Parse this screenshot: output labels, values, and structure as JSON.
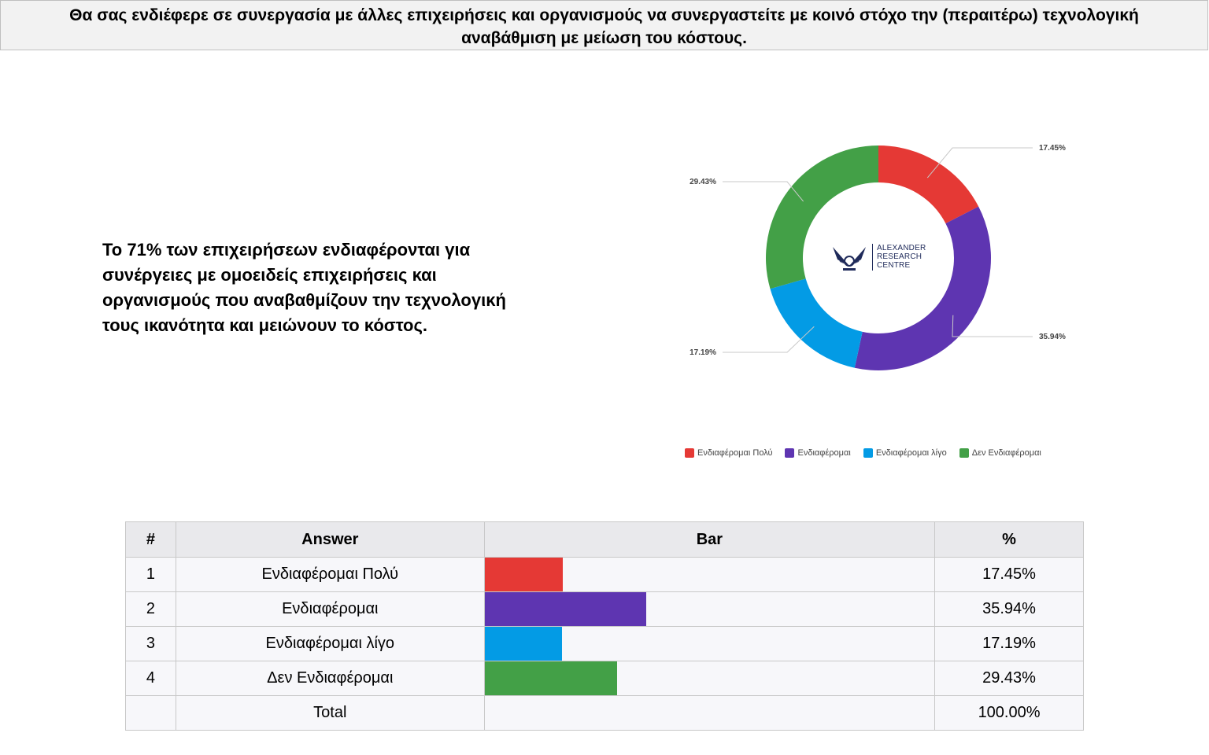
{
  "header": {
    "title": "Θα σας ενδιέφερε σε συνεργασία με άλλες επιχειρήσεις και οργανισμούς να συνεργαστείτε με κοινό στόχο την (περαιτέρω) τεχνολογική αναβάθμιση με μείωση του κόστους."
  },
  "summary": {
    "text": "Το 71% των επιχειρήσεων ενδιαφέρονται για συνέργειες με ομοειδείς επιχειρήσεις και οργανισμούς που αναβαθμίζουν την τεχνολογική τους ικανότητα και μειώνουν το κόστος."
  },
  "logo": {
    "line1": "ALEXANDER",
    "line2": "RESEARCH",
    "line3": "CENTRE"
  },
  "table": {
    "headers": [
      "#",
      "Answer",
      "Bar",
      "%"
    ],
    "rows": [
      {
        "num": "1",
        "answer": "Ενδιαφέρομαι Πολύ",
        "pct": "17.45%"
      },
      {
        "num": "2",
        "answer": "Ενδιαφέρομαι",
        "pct": "35.94%"
      },
      {
        "num": "3",
        "answer": "Ενδιαφέρομαι λίγο",
        "pct": "17.19%"
      },
      {
        "num": "4",
        "answer": "Δεν Ενδιαφέρομαι",
        "pct": "29.43%"
      }
    ],
    "total": {
      "num": "",
      "answer": "Total",
      "pct": "100.00%"
    }
  },
  "chart_data": [
    {
      "type": "pie",
      "subtype": "donut",
      "categories": [
        "Ενδιαφέρομαι Πολύ",
        "Ενδιαφέρομαι",
        "Ενδιαφέρομαι λίγο",
        "Δεν Ενδιαφέρομαι"
      ],
      "values": [
        17.45,
        35.94,
        17.19,
        29.43
      ],
      "labels": [
        "17.45%",
        "35.94%",
        "17.19%",
        "29.43%"
      ],
      "colors": [
        "#e53935",
        "#5e35b1",
        "#039be5",
        "#43a047"
      ],
      "legend_position": "bottom"
    },
    {
      "type": "bar",
      "orientation": "horizontal",
      "categories": [
        "Ενδιαφέρομαι Πολύ",
        "Ενδιαφέρομαι",
        "Ενδιαφέρομαι λίγο",
        "Δεν Ενδιαφέρομαι"
      ],
      "values": [
        17.45,
        35.94,
        17.19,
        29.43
      ],
      "colors": [
        "#e53935",
        "#5e35b1",
        "#039be5",
        "#43a047"
      ],
      "xlim": [
        0,
        100
      ]
    }
  ]
}
